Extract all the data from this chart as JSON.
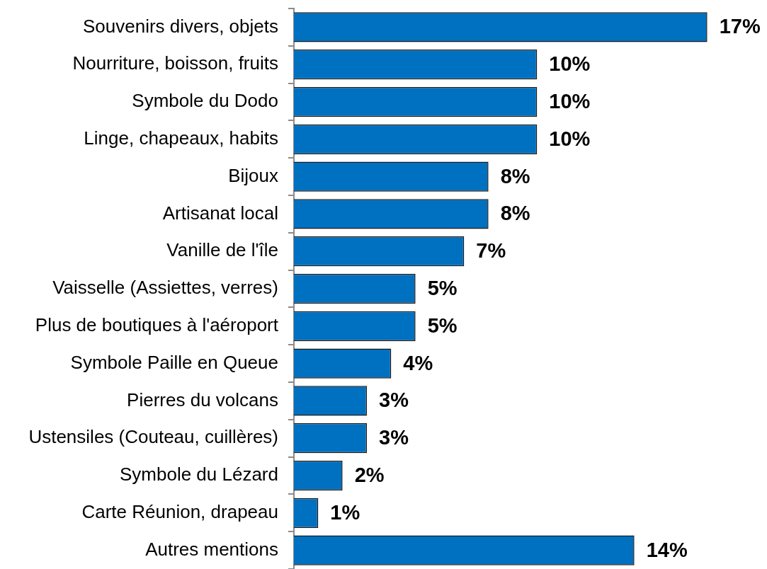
{
  "chart_data": {
    "type": "bar",
    "orientation": "horizontal",
    "tick_labels": "y",
    "color": "#0070c0",
    "categories": [
      "Souvenirs divers, objets",
      "Nourriture, boisson, fruits",
      "Symbole du Dodo",
      "Linge, chapeaux, habits",
      "Bijoux",
      "Artisanat local",
      "Vanille de l'île",
      "Vaisselle (Assiettes, verres)",
      "Plus de boutiques à l'aéroport",
      "Symbole Paille en Queue",
      "Pierres du volcans",
      "Ustensiles (Couteau, cuillères)",
      "Symbole du Lézard",
      "Carte Réunion, drapeau",
      "Autres mentions"
    ],
    "values": [
      17,
      10,
      10,
      10,
      8,
      8,
      7,
      5,
      5,
      4,
      3,
      3,
      2,
      1,
      14
    ],
    "value_labels": [
      "17%",
      "10%",
      "10%",
      "10%",
      "8%",
      "8%",
      "7%",
      "5%",
      "5%",
      "4%",
      "3%",
      "3%",
      "2%",
      "1%",
      "14%"
    ]
  }
}
